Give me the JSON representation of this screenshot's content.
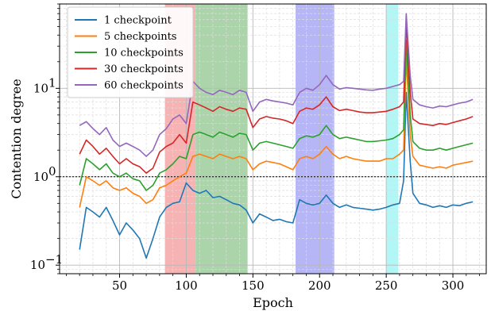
{
  "chart_data": {
    "type": "line",
    "xlabel": "Epoch",
    "ylabel": "Contention degree",
    "xlim": [
      5,
      325
    ],
    "ylim": [
      0.08,
      90
    ],
    "yscale": "log",
    "x_ticks": [
      50,
      100,
      150,
      200,
      250,
      300
    ],
    "y_ticks": [
      {
        "value": 0.1,
        "base": "10",
        "exp": "−1"
      },
      {
        "value": 1,
        "base": "10",
        "exp": "0"
      },
      {
        "value": 10,
        "base": "10",
        "exp": "1"
      }
    ],
    "grid": "major and minor, dashed",
    "reference_line": {
      "y": 1,
      "style": "dotted black"
    },
    "legend_position": "top-left",
    "shaded_regions": [
      {
        "from": 84,
        "to": 107,
        "color": "#f4a6a6"
      },
      {
        "from": 107,
        "to": 146,
        "color": "#9ccc9c"
      },
      {
        "from": 182,
        "to": 211,
        "color": "#a9a9f4"
      },
      {
        "from": 250,
        "to": 259,
        "color": "#a6f4f4"
      }
    ],
    "series": [
      {
        "name": "1 checkpoint",
        "color": "#1f77b4",
        "x": [
          20,
          25,
          30,
          35,
          40,
          45,
          50,
          55,
          60,
          65,
          70,
          75,
          80,
          85,
          90,
          95,
          100,
          105,
          110,
          115,
          120,
          125,
          130,
          135,
          140,
          145,
          150,
          155,
          160,
          165,
          170,
          175,
          180,
          185,
          190,
          195,
          200,
          205,
          210,
          215,
          220,
          225,
          230,
          235,
          240,
          245,
          250,
          255,
          260,
          263,
          265,
          268,
          270,
          275,
          280,
          285,
          290,
          295,
          300,
          305,
          310,
          315
        ],
        "values": [
          0.15,
          0.45,
          0.4,
          0.35,
          0.45,
          0.32,
          0.22,
          0.3,
          0.25,
          0.2,
          0.12,
          0.2,
          0.35,
          0.45,
          0.5,
          0.52,
          0.85,
          0.7,
          0.65,
          0.7,
          0.58,
          0.6,
          0.55,
          0.5,
          0.48,
          0.42,
          0.3,
          0.38,
          0.35,
          0.32,
          0.33,
          0.31,
          0.3,
          0.55,
          0.5,
          0.48,
          0.5,
          0.62,
          0.5,
          0.45,
          0.48,
          0.45,
          0.44,
          0.43,
          0.42,
          0.43,
          0.45,
          0.48,
          0.5,
          0.9,
          9.0,
          1.5,
          0.65,
          0.5,
          0.48,
          0.45,
          0.47,
          0.45,
          0.48,
          0.47,
          0.5,
          0.52
        ]
      },
      {
        "name": "5 checkpoints",
        "color": "#ff7f0e",
        "x": [
          20,
          25,
          30,
          35,
          40,
          45,
          50,
          55,
          60,
          65,
          70,
          75,
          80,
          85,
          90,
          95,
          100,
          105,
          110,
          115,
          120,
          125,
          130,
          135,
          140,
          145,
          150,
          155,
          160,
          165,
          170,
          175,
          180,
          185,
          190,
          195,
          200,
          205,
          210,
          215,
          220,
          225,
          230,
          235,
          240,
          245,
          250,
          255,
          260,
          263,
          265,
          268,
          270,
          275,
          280,
          285,
          290,
          295,
          300,
          305,
          310,
          315
        ],
        "values": [
          0.45,
          1.0,
          0.9,
          0.8,
          0.9,
          0.75,
          0.7,
          0.75,
          0.65,
          0.6,
          0.5,
          0.55,
          0.75,
          0.8,
          0.9,
          1.0,
          1.1,
          1.7,
          1.8,
          1.7,
          1.6,
          1.8,
          1.7,
          1.6,
          1.7,
          1.6,
          1.2,
          1.4,
          1.5,
          1.45,
          1.4,
          1.3,
          1.2,
          1.6,
          1.7,
          1.6,
          1.8,
          2.2,
          1.8,
          1.6,
          1.7,
          1.6,
          1.55,
          1.5,
          1.5,
          1.5,
          1.6,
          1.6,
          1.8,
          2.0,
          22.0,
          3.0,
          1.7,
          1.35,
          1.3,
          1.25,
          1.3,
          1.25,
          1.35,
          1.4,
          1.45,
          1.5
        ]
      },
      {
        "name": "10 checkpoints",
        "color": "#2ca02c",
        "x": [
          20,
          25,
          30,
          35,
          40,
          45,
          50,
          55,
          60,
          65,
          70,
          75,
          80,
          85,
          90,
          95,
          100,
          105,
          110,
          115,
          120,
          125,
          130,
          135,
          140,
          145,
          150,
          155,
          160,
          165,
          170,
          175,
          180,
          185,
          190,
          195,
          200,
          205,
          210,
          215,
          220,
          225,
          230,
          235,
          240,
          245,
          250,
          255,
          260,
          263,
          265,
          268,
          270,
          275,
          280,
          285,
          290,
          295,
          300,
          305,
          310,
          315
        ],
        "values": [
          0.8,
          1.6,
          1.4,
          1.2,
          1.4,
          1.1,
          1.0,
          1.1,
          0.95,
          0.9,
          0.7,
          0.8,
          1.1,
          1.2,
          1.4,
          1.7,
          1.6,
          3.0,
          3.2,
          3.0,
          2.8,
          3.2,
          3.0,
          2.8,
          3.1,
          3.0,
          2.0,
          2.4,
          2.5,
          2.4,
          2.3,
          2.2,
          2.1,
          2.7,
          2.9,
          2.8,
          3.0,
          3.8,
          3.0,
          2.7,
          2.8,
          2.7,
          2.6,
          2.5,
          2.5,
          2.55,
          2.6,
          2.7,
          3.0,
          3.4,
          35.0,
          5.0,
          2.5,
          2.1,
          2.0,
          2.0,
          2.1,
          2.0,
          2.1,
          2.2,
          2.3,
          2.4
        ]
      },
      {
        "name": "30 checkpoints",
        "color": "#d62728",
        "x": [
          20,
          25,
          30,
          35,
          40,
          45,
          50,
          55,
          60,
          65,
          70,
          75,
          80,
          85,
          90,
          95,
          100,
          105,
          110,
          115,
          120,
          125,
          130,
          135,
          140,
          145,
          150,
          155,
          160,
          165,
          170,
          175,
          180,
          185,
          190,
          195,
          200,
          205,
          210,
          215,
          220,
          225,
          230,
          235,
          240,
          245,
          250,
          255,
          260,
          263,
          265,
          268,
          270,
          275,
          280,
          285,
          290,
          295,
          300,
          305,
          310,
          315
        ],
        "values": [
          1.8,
          2.6,
          2.2,
          1.8,
          2.1,
          1.7,
          1.4,
          1.6,
          1.4,
          1.3,
          1.1,
          1.25,
          1.9,
          2.2,
          2.4,
          3.0,
          2.4,
          7.0,
          6.5,
          6.0,
          5.5,
          6.2,
          5.8,
          5.5,
          6.0,
          5.8,
          3.6,
          4.5,
          4.8,
          4.6,
          4.5,
          4.3,
          4.0,
          5.5,
          6.0,
          5.8,
          6.5,
          8.0,
          6.2,
          5.6,
          5.8,
          5.6,
          5.4,
          5.3,
          5.3,
          5.4,
          5.5,
          5.8,
          6.2,
          7.0,
          55.0,
          9.0,
          4.5,
          4.0,
          3.9,
          3.8,
          4.0,
          3.9,
          4.1,
          4.3,
          4.5,
          4.8
        ]
      },
      {
        "name": "60 checkpoints",
        "color": "#9467bd",
        "x": [
          20,
          25,
          30,
          35,
          40,
          45,
          50,
          55,
          60,
          65,
          70,
          75,
          80,
          85,
          90,
          95,
          100,
          105,
          110,
          115,
          120,
          125,
          130,
          135,
          140,
          145,
          150,
          155,
          160,
          165,
          170,
          175,
          180,
          185,
          190,
          195,
          200,
          205,
          210,
          215,
          220,
          225,
          230,
          235,
          240,
          245,
          250,
          255,
          260,
          263,
          265,
          268,
          270,
          275,
          280,
          285,
          290,
          295,
          300,
          305,
          310,
          315
        ],
        "values": [
          3.8,
          4.2,
          3.5,
          3.0,
          3.6,
          2.6,
          2.2,
          2.4,
          2.2,
          2.0,
          1.7,
          2.0,
          3.0,
          3.5,
          4.5,
          5.0,
          4.0,
          12.0,
          10.0,
          9.0,
          8.5,
          9.5,
          9.0,
          8.5,
          9.5,
          9.0,
          5.5,
          7.0,
          7.5,
          7.2,
          7.0,
          6.8,
          6.5,
          9.0,
          10.0,
          9.5,
          11.0,
          14.0,
          11.0,
          9.8,
          10.2,
          10.0,
          9.8,
          9.6,
          9.5,
          9.8,
          10.0,
          10.5,
          11.0,
          12.0,
          70.0,
          14.0,
          7.5,
          6.5,
          6.2,
          6.0,
          6.3,
          6.2,
          6.5,
          6.8,
          7.0,
          7.5
        ]
      }
    ]
  }
}
